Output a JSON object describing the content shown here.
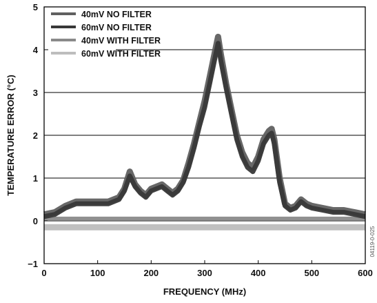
{
  "chart_data": {
    "type": "line",
    "title": "",
    "xlabel": "FREQUENCY (MHz)",
    "ylabel": "TEMPERATURE ERROR (°C)",
    "xlim": [
      0,
      600
    ],
    "ylim": [
      -1,
      5
    ],
    "xticks": [
      0,
      100,
      200,
      300,
      400,
      500,
      600
    ],
    "yticks": [
      -1,
      0,
      1,
      2,
      3,
      4,
      5
    ],
    "grid": "horizontal",
    "legend_position": "top-left",
    "figure_id": "04119-0-025",
    "x": [
      0,
      20,
      40,
      60,
      80,
      100,
      120,
      140,
      150,
      160,
      170,
      180,
      190,
      200,
      210,
      220,
      230,
      240,
      250,
      260,
      270,
      280,
      290,
      300,
      310,
      320,
      325,
      330,
      340,
      350,
      360,
      370,
      380,
      390,
      400,
      410,
      420,
      425,
      430,
      440,
      450,
      460,
      470,
      480,
      490,
      500,
      520,
      540,
      560,
      580,
      600
    ],
    "series": [
      {
        "name": "40mV NO FILTER",
        "color": "#606060",
        "values": [
          0.15,
          0.2,
          0.35,
          0.45,
          0.45,
          0.45,
          0.45,
          0.55,
          0.75,
          1.15,
          0.85,
          0.7,
          0.6,
          0.75,
          0.8,
          0.85,
          0.75,
          0.65,
          0.75,
          0.95,
          1.35,
          1.8,
          2.3,
          2.8,
          3.4,
          4.0,
          4.3,
          3.9,
          3.2,
          2.6,
          2.0,
          1.6,
          1.35,
          1.25,
          1.5,
          1.9,
          2.1,
          2.15,
          1.9,
          1.0,
          0.4,
          0.3,
          0.35,
          0.5,
          0.4,
          0.35,
          0.3,
          0.25,
          0.25,
          0.2,
          0.15
        ]
      },
      {
        "name": "60mV NO FILTER",
        "color": "#383838",
        "values": [
          0.1,
          0.15,
          0.3,
          0.4,
          0.4,
          0.4,
          0.4,
          0.5,
          0.7,
          1.05,
          0.8,
          0.65,
          0.55,
          0.7,
          0.75,
          0.8,
          0.7,
          0.6,
          0.7,
          0.9,
          1.25,
          1.7,
          2.2,
          2.65,
          3.25,
          3.85,
          4.15,
          3.75,
          3.1,
          2.5,
          1.9,
          1.5,
          1.25,
          1.15,
          1.4,
          1.8,
          2.0,
          2.05,
          1.8,
          0.9,
          0.35,
          0.25,
          0.3,
          0.45,
          0.35,
          0.3,
          0.25,
          0.2,
          0.2,
          0.15,
          0.1
        ]
      },
      {
        "name": "40mV WITH FILTER",
        "color": "#8a8a8a",
        "values": [
          0.05,
          0.05,
          0.05,
          0.05,
          0.05,
          0.05,
          0.05,
          0.05,
          0.05,
          0.05,
          0.05,
          0.05,
          0.05,
          0.05,
          0.05,
          0.05,
          0.05,
          0.05,
          0.05,
          0.05,
          0.05,
          0.05,
          0.05,
          0.05,
          0.05,
          0.05,
          0.05,
          0.05,
          0.05,
          0.05,
          0.05,
          0.05,
          0.05,
          0.05,
          0.05,
          0.05,
          0.05,
          0.05,
          0.05,
          0.05,
          0.05,
          0.05,
          0.05,
          0.05,
          0.05,
          0.05,
          0.05,
          0.05,
          0.05,
          0.05,
          0.05
        ]
      },
      {
        "name": "60mV WITH FILTER",
        "color": "#bdbdbd",
        "values": [
          -0.15,
          -0.15,
          -0.15,
          -0.15,
          -0.15,
          -0.15,
          -0.15,
          -0.15,
          -0.15,
          -0.15,
          -0.15,
          -0.15,
          -0.15,
          -0.15,
          -0.15,
          -0.15,
          -0.15,
          -0.15,
          -0.15,
          -0.15,
          -0.15,
          -0.15,
          -0.15,
          -0.15,
          -0.15,
          -0.15,
          -0.15,
          -0.15,
          -0.15,
          -0.15,
          -0.15,
          -0.15,
          -0.15,
          -0.15,
          -0.15,
          -0.15,
          -0.15,
          -0.15,
          -0.15,
          -0.15,
          -0.15,
          -0.15,
          -0.15,
          -0.15,
          -0.15,
          -0.15,
          -0.15,
          -0.15,
          -0.15,
          -0.15,
          -0.15
        ]
      }
    ]
  }
}
